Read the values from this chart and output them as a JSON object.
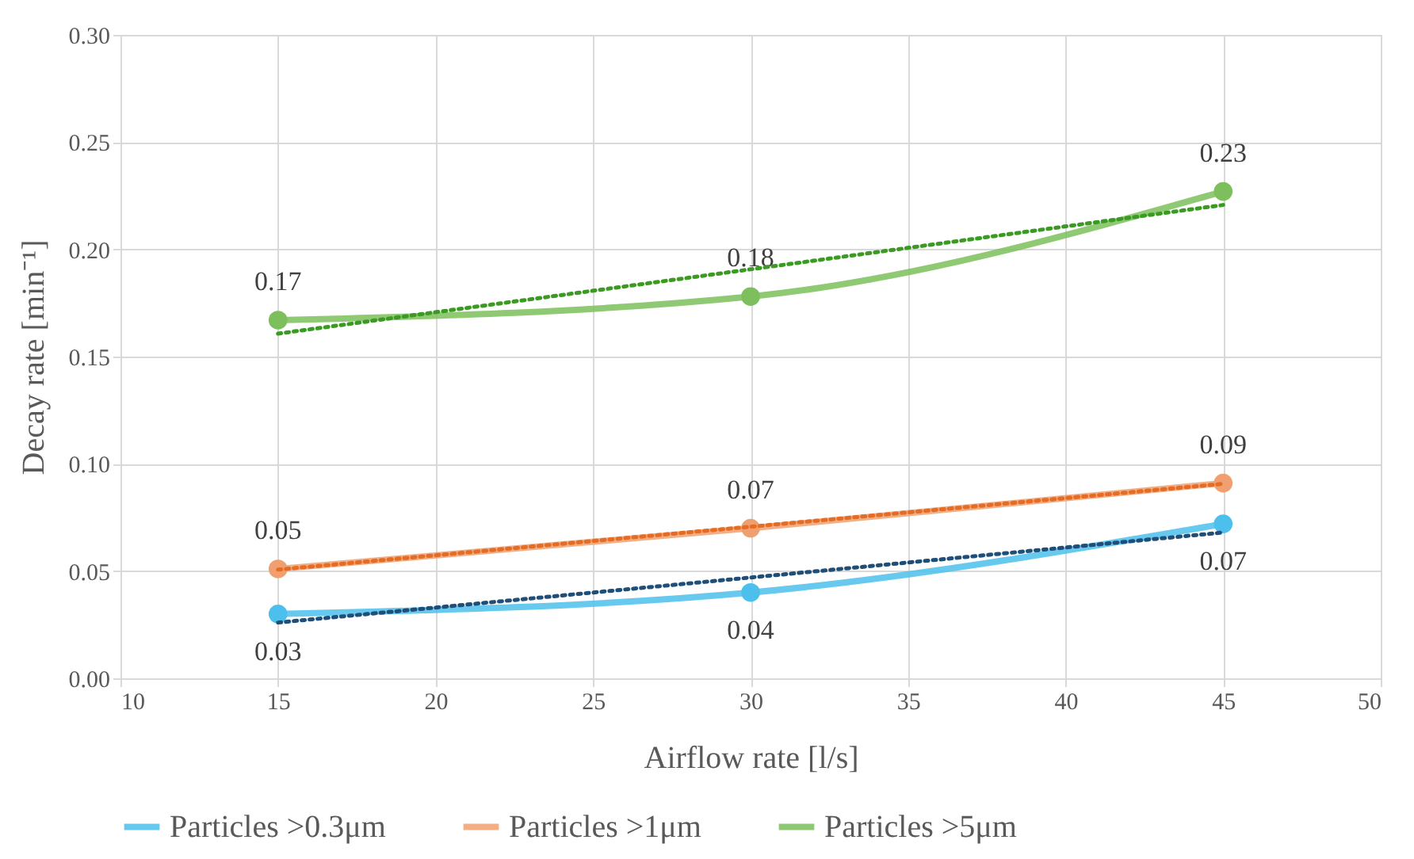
{
  "chart_data": {
    "type": "line",
    "xlabel": "Airflow rate [l/s]",
    "ylabel": "Decay rate [min⁻¹]",
    "x": [
      15,
      30,
      45
    ],
    "xlim": [
      10,
      50
    ],
    "xticks": [
      10,
      15,
      20,
      25,
      30,
      35,
      40,
      45,
      50
    ],
    "ylim": [
      0,
      0.3
    ],
    "yticks": [
      {
        "value": 0,
        "label": "0.00"
      },
      {
        "value": 0.05,
        "label": "0.05"
      },
      {
        "value": 0.1,
        "label": "0.10"
      },
      {
        "value": 0.15,
        "label": "0.15"
      },
      {
        "value": 0.2,
        "label": "0.20"
      },
      {
        "value": 0.25,
        "label": "0.25"
      },
      {
        "value": 0.3,
        "label": "0.30"
      }
    ],
    "grid": true,
    "legend": "bottom",
    "marker": "circle",
    "line_style": "solid",
    "series": [
      {
        "name": "Particles >0.3μm",
        "color": "#4dbfec",
        "values": [
          0.03,
          0.04,
          0.072
        ],
        "value_labels": [
          "0.03",
          "0.04",
          "0.07"
        ]
      },
      {
        "name": "Particles >1μm",
        "color": "#f0a070",
        "values": [
          0.051,
          0.07,
          0.091
        ],
        "value_labels": [
          "0.05",
          "0.07",
          "0.09"
        ]
      },
      {
        "name": "Particles >5μm",
        "color": "#7cbf5c",
        "values": [
          0.167,
          0.178,
          0.227
        ],
        "value_labels": [
          "0.17",
          "0.18",
          "0.23"
        ]
      },
      {
        "type": "line",
        "line_style": "dotted",
        "marker": "none",
        "color": "#1f4e79",
        "values": [
          0.026,
          0.047,
          0.068
        ]
      },
      {
        "type": "line",
        "line_style": "dotted",
        "marker": "none",
        "color": "#e46c24",
        "values": [
          0.0507,
          0.0707,
          0.0907
        ]
      },
      {
        "type": "line",
        "line_style": "dotted",
        "marker": "none",
        "color": "#3a9a22",
        "values": [
          0.1607,
          0.1907,
          0.2207
        ]
      }
    ]
  }
}
